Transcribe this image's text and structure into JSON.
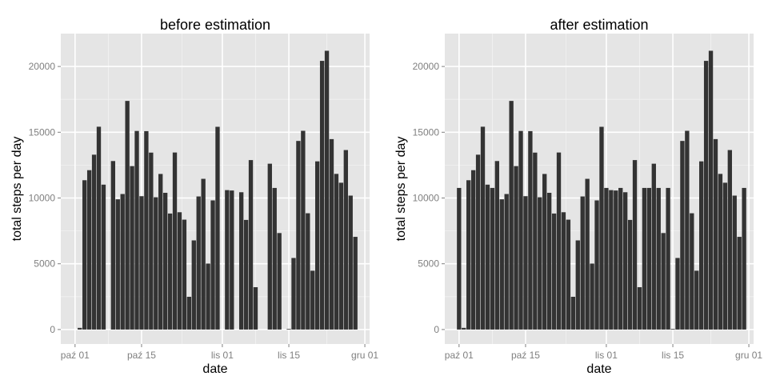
{
  "chart_data": [
    {
      "type": "bar",
      "title": "before estimation",
      "xlabel": "date",
      "ylabel": "total steps per day",
      "ylim": [
        -1100,
        22500
      ],
      "xlim": [
        "2012-09-28",
        "2012-12-02"
      ],
      "yticks": [
        0,
        5000,
        10000,
        15000,
        20000
      ],
      "xticks": [
        {
          "date": "2012-10-01",
          "label": "paź 01"
        },
        {
          "date": "2012-10-15",
          "label": "paź 15"
        },
        {
          "date": "2012-11-01",
          "label": "lis 01"
        },
        {
          "date": "2012-11-15",
          "label": "lis 15"
        },
        {
          "date": "2012-12-01",
          "label": "gru 01"
        }
      ],
      "grid": true,
      "x": [
        "2012-10-01",
        "2012-10-02",
        "2012-10-03",
        "2012-10-04",
        "2012-10-05",
        "2012-10-06",
        "2012-10-07",
        "2012-10-08",
        "2012-10-09",
        "2012-10-10",
        "2012-10-11",
        "2012-10-12",
        "2012-10-13",
        "2012-10-14",
        "2012-10-15",
        "2012-10-16",
        "2012-10-17",
        "2012-10-18",
        "2012-10-19",
        "2012-10-20",
        "2012-10-21",
        "2012-10-22",
        "2012-10-23",
        "2012-10-24",
        "2012-10-25",
        "2012-10-26",
        "2012-10-27",
        "2012-10-28",
        "2012-10-29",
        "2012-10-30",
        "2012-10-31",
        "2012-11-01",
        "2012-11-02",
        "2012-11-03",
        "2012-11-04",
        "2012-11-05",
        "2012-11-06",
        "2012-11-07",
        "2012-11-08",
        "2012-11-09",
        "2012-11-10",
        "2012-11-11",
        "2012-11-12",
        "2012-11-13",
        "2012-11-14",
        "2012-11-15",
        "2012-11-16",
        "2012-11-17",
        "2012-11-18",
        "2012-11-19",
        "2012-11-20",
        "2012-11-21",
        "2012-11-22",
        "2012-11-23",
        "2012-11-24",
        "2012-11-25",
        "2012-11-26",
        "2012-11-27",
        "2012-11-28",
        "2012-11-29",
        "2012-11-30"
      ],
      "values": [
        0,
        126,
        11352,
        12116,
        13294,
        15420,
        11015,
        0,
        12811,
        9900,
        10304,
        17382,
        12426,
        15098,
        10139,
        15084,
        13452,
        10056,
        11829,
        10395,
        8821,
        13460,
        8918,
        8355,
        2492,
        6778,
        10119,
        11458,
        5018,
        9819,
        15414,
        0,
        10600,
        10571,
        0,
        10439,
        8334,
        12883,
        3219,
        0,
        0,
        12608,
        10765,
        7336,
        0,
        41,
        5441,
        14339,
        15110,
        8841,
        4472,
        12787,
        20427,
        21194,
        14478,
        11834,
        11162,
        13646,
        10183,
        7047,
        0
      ]
    },
    {
      "type": "bar",
      "title": "after estimation",
      "xlabel": "date",
      "ylabel": "total steps per day",
      "ylim": [
        -1100,
        22500
      ],
      "xlim": [
        "2012-09-28",
        "2012-12-02"
      ],
      "yticks": [
        0,
        5000,
        10000,
        15000,
        20000
      ],
      "xticks": [
        {
          "date": "2012-10-01",
          "label": "paź 01"
        },
        {
          "date": "2012-10-15",
          "label": "paź 15"
        },
        {
          "date": "2012-11-01",
          "label": "lis 01"
        },
        {
          "date": "2012-11-15",
          "label": "lis 15"
        },
        {
          "date": "2012-12-01",
          "label": "gru 01"
        }
      ],
      "grid": true,
      "x": [
        "2012-10-01",
        "2012-10-02",
        "2012-10-03",
        "2012-10-04",
        "2012-10-05",
        "2012-10-06",
        "2012-10-07",
        "2012-10-08",
        "2012-10-09",
        "2012-10-10",
        "2012-10-11",
        "2012-10-12",
        "2012-10-13",
        "2012-10-14",
        "2012-10-15",
        "2012-10-16",
        "2012-10-17",
        "2012-10-18",
        "2012-10-19",
        "2012-10-20",
        "2012-10-21",
        "2012-10-22",
        "2012-10-23",
        "2012-10-24",
        "2012-10-25",
        "2012-10-26",
        "2012-10-27",
        "2012-10-28",
        "2012-10-29",
        "2012-10-30",
        "2012-10-31",
        "2012-11-01",
        "2012-11-02",
        "2012-11-03",
        "2012-11-04",
        "2012-11-05",
        "2012-11-06",
        "2012-11-07",
        "2012-11-08",
        "2012-11-09",
        "2012-11-10",
        "2012-11-11",
        "2012-11-12",
        "2012-11-13",
        "2012-11-14",
        "2012-11-15",
        "2012-11-16",
        "2012-11-17",
        "2012-11-18",
        "2012-11-19",
        "2012-11-20",
        "2012-11-21",
        "2012-11-22",
        "2012-11-23",
        "2012-11-24",
        "2012-11-25",
        "2012-11-26",
        "2012-11-27",
        "2012-11-28",
        "2012-11-29",
        "2012-11-30"
      ],
      "values": [
        10766,
        126,
        11352,
        12116,
        13294,
        15420,
        11015,
        10766,
        12811,
        9900,
        10304,
        17382,
        12426,
        15098,
        10139,
        15084,
        13452,
        10056,
        11829,
        10395,
        8821,
        13460,
        8918,
        8355,
        2492,
        6778,
        10119,
        11458,
        5018,
        9819,
        15414,
        10766,
        10600,
        10571,
        10766,
        10439,
        8334,
        12883,
        3219,
        10766,
        10766,
        12608,
        10765,
        7336,
        10766,
        41,
        5441,
        14339,
        15110,
        8841,
        4472,
        12787,
        20427,
        21194,
        14478,
        11834,
        11162,
        13646,
        10183,
        7047,
        10766
      ]
    }
  ]
}
